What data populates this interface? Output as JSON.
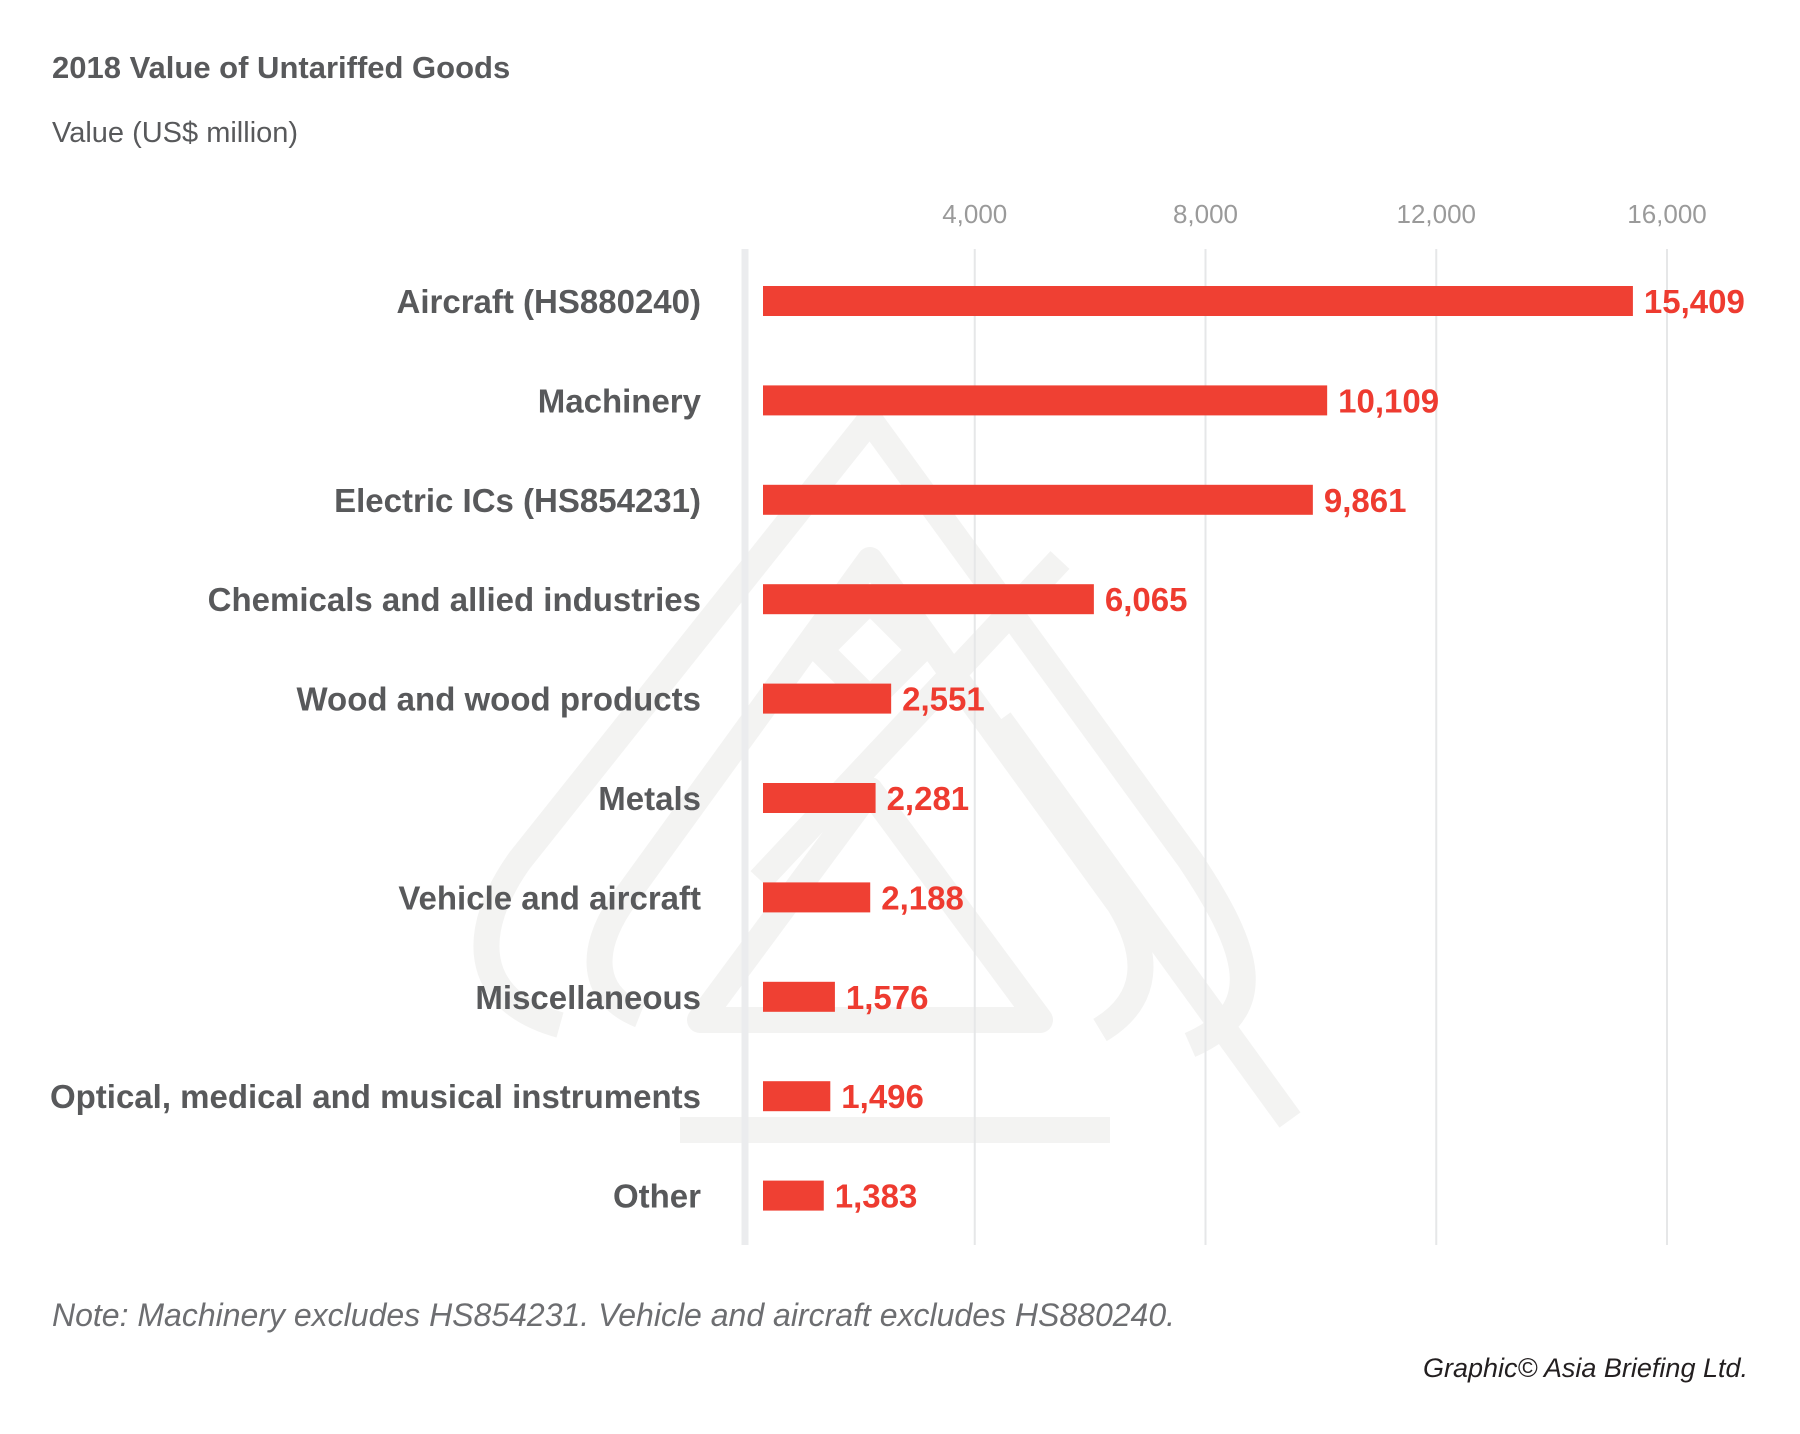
{
  "chart_data": {
    "type": "bar",
    "orientation": "horizontal",
    "title": "2018 Value of Untariffed Goods",
    "subtitle": "Value  (US$ million)",
    "xlabel": "Value (US$ million)",
    "ylabel": "",
    "xlim": [
      0,
      16000
    ],
    "x_ticks": [
      4000,
      8000,
      12000,
      16000
    ],
    "x_tick_labels": [
      "4,000",
      "8,000",
      "12,000",
      "16,000"
    ],
    "x_axis_position": "top",
    "grid": true,
    "legend": "none",
    "categories": [
      "Aircraft (HS880240)",
      "Machinery",
      "Electric ICs (HS854231)",
      "Chemicals and allied industries",
      "Wood and wood products",
      "Metals",
      "Vehicle and aircraft",
      "Miscellaneous",
      "Optical, medical and musical instruments",
      "Other"
    ],
    "values": [
      15409,
      10109,
      9861,
      6065,
      2551,
      2281,
      2188,
      1576,
      1496,
      1383
    ],
    "value_labels": [
      "15,409",
      "10,109",
      "9,861",
      "6,065",
      "2,551",
      "2,281",
      "2,188",
      "1,576",
      "1,496",
      "1,383"
    ],
    "bar_color": "#ef4033",
    "value_label_color": "#ee3b30",
    "note": "Note: Machinery excludes HS854231. Vehicle and aircraft excludes HS880240.",
    "credit": "Graphic© Asia Briefing Ltd."
  },
  "watermark": {
    "icon": "asia-briefing-logo-icon"
  }
}
